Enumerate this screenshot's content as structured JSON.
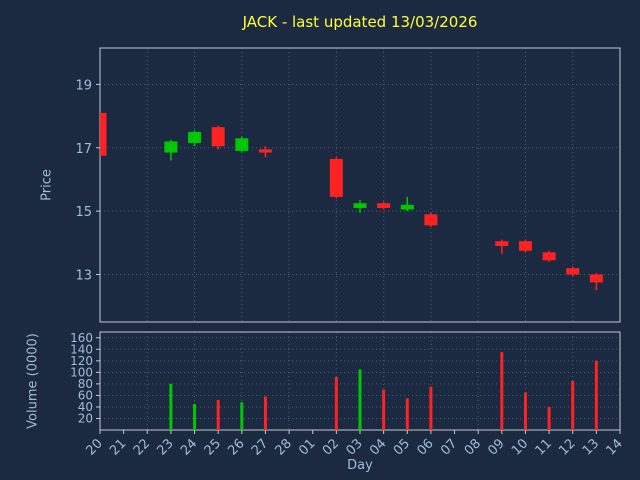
{
  "chart_data": {
    "type": "candlestick",
    "title": "JACK - last updated 13/03/2026",
    "x_axis": {
      "label": "Day",
      "categories": [
        "20",
        "21",
        "22",
        "23",
        "24",
        "25",
        "26",
        "27",
        "28",
        "01",
        "02",
        "03",
        "04",
        "05",
        "06",
        "07",
        "08",
        "09",
        "10",
        "11",
        "12",
        "13",
        "14"
      ]
    },
    "price_axis": {
      "label": "Price",
      "ticks": [
        13,
        15,
        17,
        19
      ],
      "min": 11.5,
      "max": 20.15
    },
    "volume_axis": {
      "label": "Volume (0000)",
      "ticks": [
        20,
        40,
        60,
        80,
        100,
        120,
        140,
        160
      ],
      "min": 0,
      "max": 170
    },
    "grid": "dotted, every second day vertically",
    "legend": "none",
    "candles": [
      {
        "day": "20",
        "open": 18.1,
        "high": 18.1,
        "low": 16.75,
        "close": 16.75,
        "volume": null,
        "volume_dir": "down"
      },
      {
        "day": "23",
        "open": 16.85,
        "high": 17.25,
        "low": 16.6,
        "close": 17.2,
        "volume": 80,
        "volume_dir": "up"
      },
      {
        "day": "24",
        "open": 17.15,
        "high": 17.55,
        "low": 17.05,
        "close": 17.5,
        "volume": 45,
        "volume_dir": "up"
      },
      {
        "day": "25",
        "open": 17.65,
        "high": 17.7,
        "low": 16.95,
        "close": 17.05,
        "volume": 52,
        "volume_dir": "down"
      },
      {
        "day": "26",
        "open": 16.9,
        "high": 17.35,
        "low": 16.85,
        "close": 17.3,
        "volume": 48,
        "volume_dir": "up"
      },
      {
        "day": "27",
        "open": 16.95,
        "high": 17.05,
        "low": 16.7,
        "close": 16.85,
        "volume": 58,
        "volume_dir": "down"
      },
      {
        "day": "02",
        "open": 16.65,
        "high": 16.7,
        "low": 15.4,
        "close": 15.45,
        "volume": 92,
        "volume_dir": "down"
      },
      {
        "day": "03",
        "open": 15.1,
        "high": 15.35,
        "low": 14.95,
        "close": 15.25,
        "volume": 105,
        "volume_dir": "up"
      },
      {
        "day": "04",
        "open": 15.25,
        "high": 15.3,
        "low": 15.05,
        "close": 15.1,
        "volume": 70,
        "volume_dir": "down"
      },
      {
        "day": "05",
        "open": 15.05,
        "high": 15.45,
        "low": 15.0,
        "close": 15.2,
        "volume": 55,
        "volume_dir": "down"
      },
      {
        "day": "06",
        "open": 14.9,
        "high": 14.95,
        "low": 14.5,
        "close": 14.55,
        "volume": 75,
        "volume_dir": "down"
      },
      {
        "day": "09",
        "open": 14.05,
        "high": 14.1,
        "low": 13.65,
        "close": 13.9,
        "volume": 135,
        "volume_dir": "down"
      },
      {
        "day": "10",
        "open": 14.05,
        "high": 14.1,
        "low": 13.7,
        "close": 13.75,
        "volume": 65,
        "volume_dir": "down"
      },
      {
        "day": "11",
        "open": 13.7,
        "high": 13.75,
        "low": 13.4,
        "close": 13.45,
        "volume": 40,
        "volume_dir": "down"
      },
      {
        "day": "12",
        "open": 13.2,
        "high": 13.25,
        "low": 12.95,
        "close": 13.0,
        "volume": 85,
        "volume_dir": "down"
      },
      {
        "day": "13",
        "open": 13.0,
        "high": 13.05,
        "low": 12.5,
        "close": 12.75,
        "volume": 120,
        "volume_dir": "down"
      }
    ],
    "colors": {
      "up": "#00c800",
      "down": "#ff2222",
      "title": "#ffff33",
      "axis_text": "#9fbcd8",
      "grid": "#4d6078",
      "frame": "#c0c8d4",
      "background": "#1b2a41"
    }
  }
}
